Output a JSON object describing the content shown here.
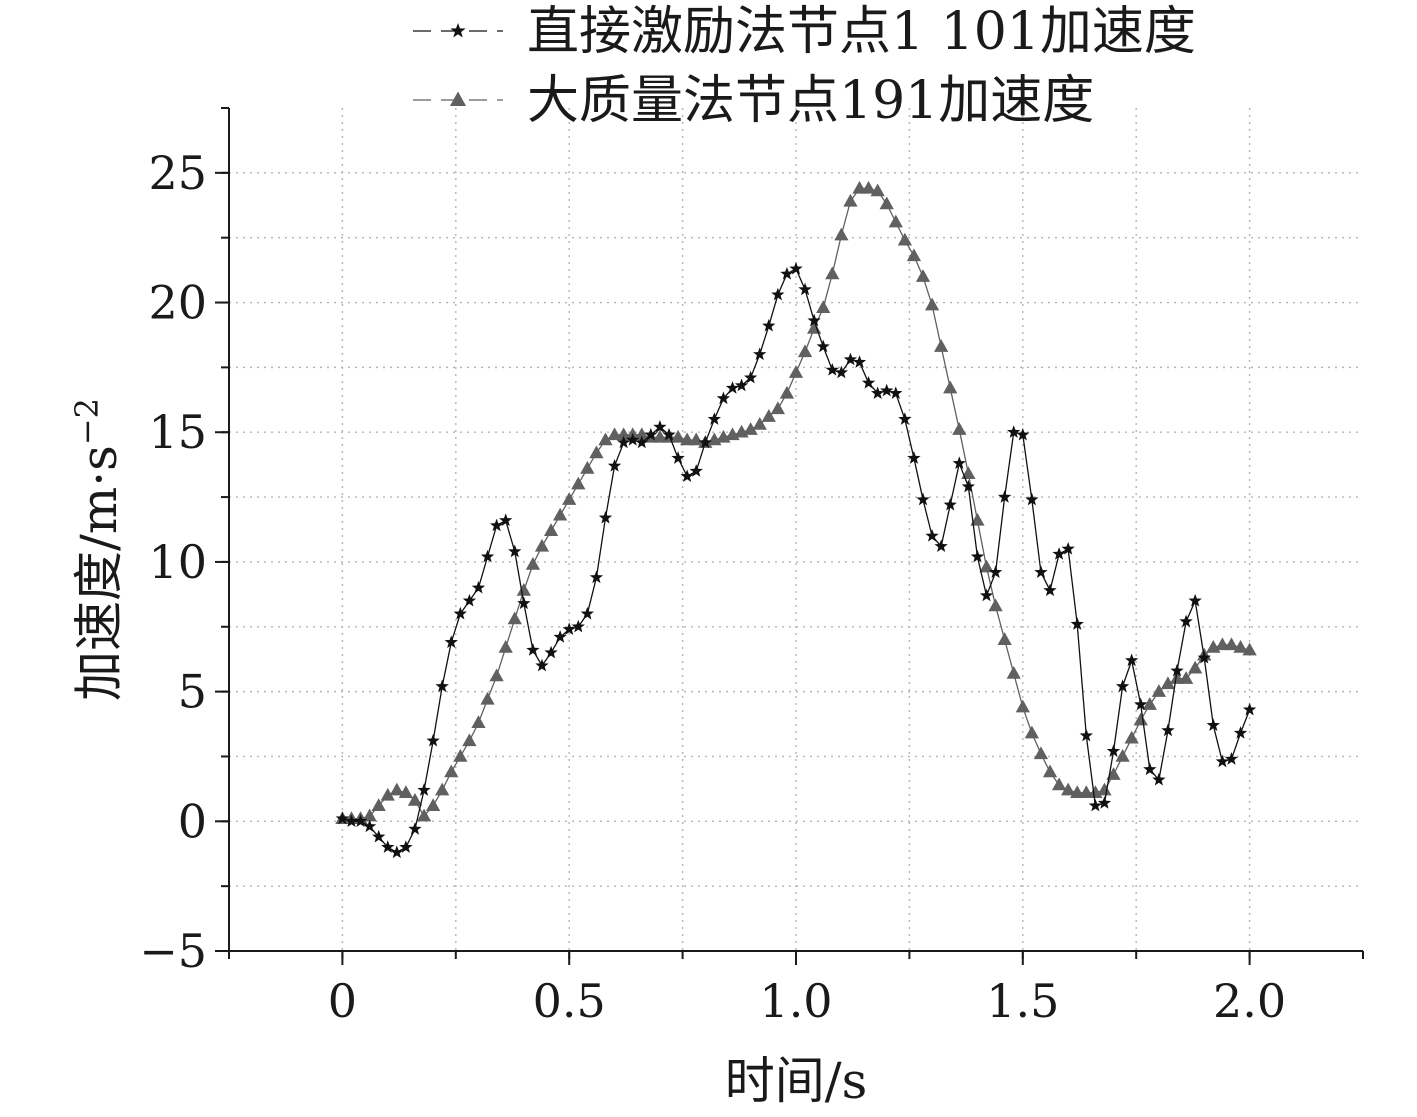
{
  "chart_data": {
    "type": "line",
    "title": "",
    "xlabel": "时间/s",
    "ylabel_main": "加速度/m·s",
    "ylabel_sup": "−2",
    "xlim": [
      -0.25,
      2.25
    ],
    "ylim": [
      -5,
      27.5
    ],
    "x_ticks": [
      0,
      0.5,
      1.0,
      1.5,
      2.0
    ],
    "x_tick_labels": [
      "0",
      "0.5",
      "1.0",
      "1.5",
      "2.0"
    ],
    "y_ticks": [
      -5,
      0,
      5,
      10,
      15,
      20,
      25
    ],
    "y_tick_labels": [
      "−5",
      "0",
      "5",
      "10",
      "15",
      "20",
      "25"
    ],
    "grid": true,
    "legend_position": "top",
    "colors": {
      "series1": "#111111",
      "series2": "#606060",
      "axis": "#1a1a1a",
      "grid": "#b5b5b5"
    },
    "series": [
      {
        "name": "直接激励法节点1 101加速度",
        "marker": "star",
        "x": [
          0.0,
          0.02,
          0.04,
          0.06,
          0.08,
          0.1,
          0.12,
          0.14,
          0.16,
          0.18,
          0.2,
          0.22,
          0.24,
          0.26,
          0.28,
          0.3,
          0.32,
          0.34,
          0.36,
          0.38,
          0.4,
          0.42,
          0.44,
          0.46,
          0.48,
          0.5,
          0.52,
          0.54,
          0.56,
          0.58,
          0.6,
          0.62,
          0.64,
          0.66,
          0.68,
          0.7,
          0.72,
          0.74,
          0.76,
          0.78,
          0.8,
          0.82,
          0.84,
          0.86,
          0.88,
          0.9,
          0.92,
          0.94,
          0.96,
          0.98,
          1.0,
          1.02,
          1.04,
          1.06,
          1.08,
          1.1,
          1.12,
          1.14,
          1.16,
          1.18,
          1.2,
          1.22,
          1.24,
          1.26,
          1.28,
          1.3,
          1.32,
          1.34,
          1.36,
          1.38,
          1.4,
          1.42,
          1.44,
          1.46,
          1.48,
          1.5,
          1.52,
          1.54,
          1.56,
          1.58,
          1.6,
          1.62,
          1.64,
          1.66,
          1.68,
          1.7,
          1.72,
          1.74,
          1.76,
          1.78,
          1.8,
          1.82,
          1.84,
          1.86,
          1.88,
          1.9,
          1.92,
          1.94,
          1.96,
          1.98,
          2.0
        ],
        "y": [
          0.1,
          0.0,
          0.0,
          -0.2,
          -0.6,
          -1.0,
          -1.2,
          -1.0,
          -0.3,
          1.2,
          3.1,
          5.2,
          6.9,
          8.0,
          8.5,
          9.0,
          10.2,
          11.4,
          11.6,
          10.4,
          8.4,
          6.6,
          6.0,
          6.5,
          7.1,
          7.4,
          7.5,
          8.0,
          9.4,
          11.7,
          13.7,
          14.6,
          14.7,
          14.6,
          14.9,
          15.2,
          14.9,
          14.0,
          13.3,
          13.5,
          14.6,
          15.5,
          16.3,
          16.7,
          16.8,
          17.1,
          18.0,
          19.1,
          20.3,
          21.1,
          21.3,
          20.5,
          19.3,
          18.3,
          17.4,
          17.3,
          17.8,
          17.7,
          16.9,
          16.5,
          16.6,
          16.5,
          15.5,
          14.0,
          12.4,
          11.0,
          10.6,
          12.2,
          13.8,
          12.9,
          10.2,
          8.7,
          9.6,
          12.5,
          15.0,
          14.9,
          12.4,
          9.6,
          8.9,
          10.3,
          10.5,
          7.6,
          3.3,
          0.6,
          0.7,
          2.7,
          5.2,
          6.2,
          4.5,
          2.0,
          1.6,
          3.5,
          5.8,
          7.7,
          8.5,
          6.3,
          3.7,
          2.3,
          2.4,
          3.4,
          4.3
        ]
      },
      {
        "name": "大质量法节点191加速度",
        "marker": "triangle",
        "x": [
          0.0,
          0.02,
          0.04,
          0.06,
          0.08,
          0.1,
          0.12,
          0.14,
          0.16,
          0.18,
          0.2,
          0.22,
          0.24,
          0.26,
          0.28,
          0.3,
          0.32,
          0.34,
          0.36,
          0.38,
          0.4,
          0.42,
          0.44,
          0.46,
          0.48,
          0.5,
          0.52,
          0.54,
          0.56,
          0.58,
          0.6,
          0.62,
          0.64,
          0.66,
          0.68,
          0.7,
          0.72,
          0.74,
          0.76,
          0.78,
          0.8,
          0.82,
          0.84,
          0.86,
          0.88,
          0.9,
          0.92,
          0.94,
          0.96,
          0.98,
          1.0,
          1.02,
          1.04,
          1.06,
          1.08,
          1.1,
          1.12,
          1.14,
          1.16,
          1.18,
          1.2,
          1.22,
          1.24,
          1.26,
          1.28,
          1.3,
          1.32,
          1.34,
          1.36,
          1.38,
          1.4,
          1.42,
          1.44,
          1.46,
          1.48,
          1.5,
          1.52,
          1.54,
          1.56,
          1.58,
          1.6,
          1.62,
          1.64,
          1.66,
          1.68,
          1.7,
          1.72,
          1.74,
          1.76,
          1.78,
          1.8,
          1.82,
          1.84,
          1.86,
          1.88,
          1.9,
          1.92,
          1.94,
          1.96,
          1.98,
          2.0
        ],
        "y": [
          0.1,
          0.1,
          0.1,
          0.2,
          0.6,
          1.0,
          1.2,
          1.1,
          0.8,
          0.2,
          0.6,
          1.2,
          1.9,
          2.5,
          3.1,
          3.8,
          4.7,
          5.6,
          6.7,
          7.8,
          8.9,
          9.9,
          10.6,
          11.2,
          11.8,
          12.4,
          13.0,
          13.6,
          14.2,
          14.7,
          14.9,
          14.9,
          14.9,
          14.9,
          14.8,
          14.8,
          14.8,
          14.8,
          14.7,
          14.7,
          14.6,
          14.7,
          14.8,
          14.9,
          15.0,
          15.1,
          15.3,
          15.6,
          15.9,
          16.5,
          17.3,
          18.1,
          19.0,
          19.8,
          21.1,
          22.6,
          23.9,
          24.4,
          24.4,
          24.3,
          23.8,
          23.1,
          22.4,
          21.8,
          21.0,
          19.9,
          18.3,
          16.7,
          15.1,
          13.4,
          11.6,
          9.8,
          8.3,
          7.0,
          5.7,
          4.4,
          3.4,
          2.6,
          1.9,
          1.4,
          1.2,
          1.1,
          1.1,
          1.1,
          1.2,
          1.8,
          2.5,
          3.2,
          3.9,
          4.5,
          5.0,
          5.3,
          5.5,
          5.5,
          5.9,
          6.4,
          6.7,
          6.8,
          6.8,
          6.7,
          6.6
        ]
      }
    ]
  }
}
